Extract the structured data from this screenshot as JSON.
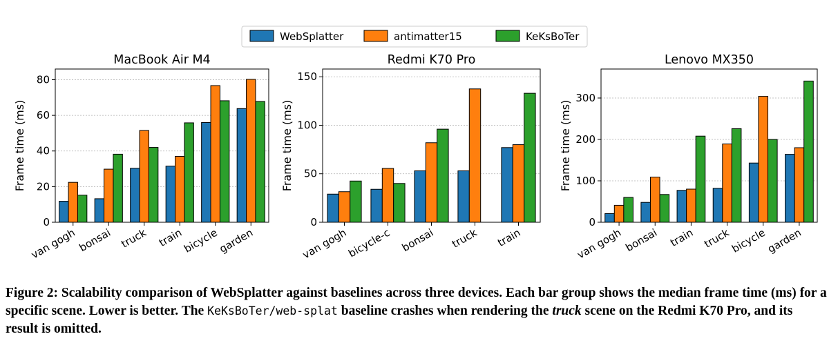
{
  "legend": [
    "WebSplatter",
    "antimatter15",
    "KeKsBoTer"
  ],
  "colors": [
    "#1f77b4",
    "#ff7f0e",
    "#2ca02c"
  ],
  "chart_data": [
    {
      "type": "bar",
      "title": "MacBook Air M4",
      "ylabel": "Frame time (ms)",
      "xlabel": "",
      "ylim": [
        0,
        86
      ],
      "yticks": [
        0,
        20,
        40,
        60,
        80
      ],
      "categories": [
        "van gogh",
        "bonsai",
        "truck",
        "train",
        "bicycle",
        "garden"
      ],
      "series": [
        {
          "name": "WebSplatter",
          "values": [
            11.8,
            13.2,
            30.3,
            31.5,
            56.0,
            63.8
          ]
        },
        {
          "name": "antimatter15",
          "values": [
            22.4,
            29.8,
            51.5,
            37.0,
            76.7,
            80.2
          ]
        },
        {
          "name": "KeKsBoTer",
          "values": [
            15.2,
            38.2,
            42.0,
            55.8,
            68.2,
            67.8
          ]
        }
      ]
    },
    {
      "type": "bar",
      "title": "Redmi K70 Pro",
      "ylabel": "Frame time (ms)",
      "xlabel": "",
      "ylim": [
        0,
        158
      ],
      "yticks": [
        0,
        50,
        100,
        150
      ],
      "categories": [
        "van gogh",
        "bicycle-c",
        "bonsai",
        "truck",
        "train"
      ],
      "series": [
        {
          "name": "WebSplatter",
          "values": [
            29.0,
            34.0,
            53.0,
            53.0,
            77.0
          ]
        },
        {
          "name": "antimatter15",
          "values": [
            31.5,
            55.5,
            82.0,
            137.5,
            80.0
          ]
        },
        {
          "name": "KeKsBoTer",
          "values": [
            42.5,
            40.0,
            96.0,
            null,
            133.0
          ]
        }
      ]
    },
    {
      "type": "bar",
      "title": "Lenovo MX350",
      "ylabel": "Frame time (ms)",
      "xlabel": "",
      "ylim": [
        0,
        370
      ],
      "yticks": [
        0,
        100,
        200,
        300
      ],
      "categories": [
        "van gogh",
        "bonsai",
        "train",
        "truck",
        "bicycle",
        "garden"
      ],
      "series": [
        {
          "name": "WebSplatter",
          "values": [
            21,
            48,
            77,
            82,
            143,
            164
          ]
        },
        {
          "name": "antimatter15",
          "values": [
            41,
            109,
            80,
            189,
            304,
            180
          ]
        },
        {
          "name": "KeKsBoTer",
          "values": [
            60,
            67,
            208,
            226,
            200,
            341
          ]
        }
      ]
    }
  ],
  "caption": {
    "part1": "Figure 2: Scalability comparison of WebSplatter against baselines across three devices. Each bar group shows the median frame time (ms) for a specific scene. Lower is better. The ",
    "code": "KeKsBoTer/web-splat",
    "part2": " baseline crashes when rendering the ",
    "ital": "truck",
    "part3": " scene on the Redmi K70 Pro, and its result is omitted."
  }
}
